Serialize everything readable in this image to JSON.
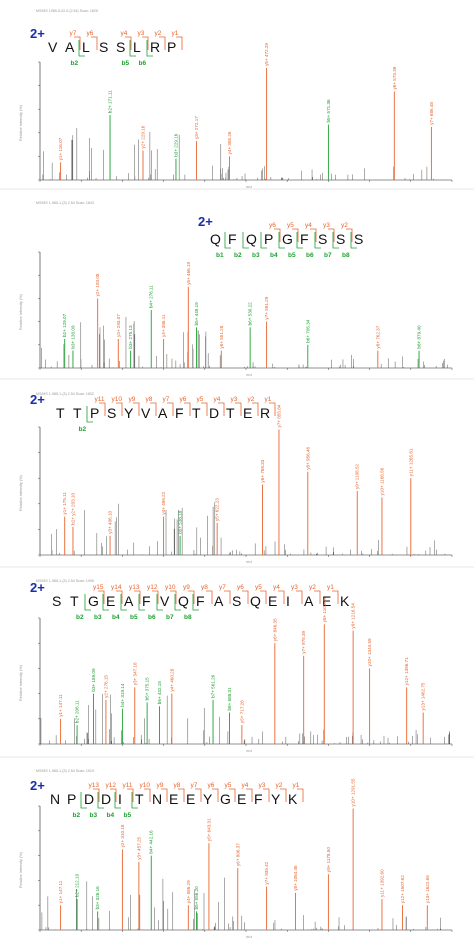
{
  "colors": {
    "y_ion": "#e8652f",
    "b_ion": "#1fa032",
    "charge": "#1a2ea8",
    "peak": "#444444",
    "axis": "#222222",
    "faint": "#999999"
  },
  "chart_data": [
    {
      "type": "bar",
      "charge": "2+",
      "sequence": "VALSSLRP",
      "y_ions": [
        {
          "label": "y7",
          "index": 1
        },
        {
          "label": "y6",
          "index": 2
        },
        {
          "label": "y4",
          "index": 4
        },
        {
          "label": "y3",
          "index": 5
        },
        {
          "label": "y2",
          "index": 6
        },
        {
          "label": "y1",
          "index": 7
        }
      ],
      "b_ions": [
        {
          "label": "b2",
          "index": 1
        },
        {
          "label": "b5",
          "index": 4
        },
        {
          "label": "b6",
          "index": 5
        }
      ],
      "header": "MS/MS 1985-5-02-6 (2.54) Scan: 1825",
      "ylabel": "Relative Intensity (%)",
      "xlabel": "m/z",
      "peaks": [
        {
          "x": 0.05,
          "h": 0.15,
          "lbl": "y1+ 116.07",
          "c": "y"
        },
        {
          "x": 0.17,
          "h": 0.55,
          "lbl": "b2+ 171.11",
          "c": "b"
        },
        {
          "x": 0.25,
          "h": 0.25,
          "lbl": "y2+ 229.16",
          "c": "y"
        },
        {
          "x": 0.33,
          "h": 0.18,
          "lbl": "b3+ 229.16",
          "c": "b"
        },
        {
          "x": 0.38,
          "h": 0.33,
          "lbl": "y3+ 272.17",
          "c": "y"
        },
        {
          "x": 0.46,
          "h": 0.2,
          "lbl": "y4+ 385.26",
          "c": "y"
        },
        {
          "x": 0.55,
          "h": 0.95,
          "lbl": "y5+ 472.29",
          "c": "y"
        },
        {
          "x": 0.7,
          "h": 0.47,
          "lbl": "b5+ 571.36",
          "c": "b"
        },
        {
          "x": 0.86,
          "h": 0.75,
          "lbl": "y6+ 573.39",
          "c": "y"
        },
        {
          "x": 0.95,
          "h": 0.45,
          "lbl": "y7+ 686.48",
          "c": "y"
        }
      ]
    },
    {
      "type": "bar",
      "charge": "2+",
      "sequence": "QFQPGFSSS",
      "y_ions": [
        {
          "label": "y6",
          "index": 3
        },
        {
          "label": "y5",
          "index": 4
        },
        {
          "label": "y4",
          "index": 5
        },
        {
          "label": "y3",
          "index": 6
        },
        {
          "label": "y2",
          "index": 7
        }
      ],
      "b_ions": [
        {
          "label": "b1",
          "index": 0
        },
        {
          "label": "b2",
          "index": 1
        },
        {
          "label": "b3",
          "index": 2
        },
        {
          "label": "b4",
          "index": 3
        },
        {
          "label": "b5",
          "index": 4
        },
        {
          "label": "b6",
          "index": 5
        },
        {
          "label": "b7",
          "index": 6
        },
        {
          "label": "b8",
          "index": 7
        }
      ],
      "header": "MS/MS 1-985-1-(3) 2.54 Scan: 1843",
      "ylabel": "Relative Intensity (%)",
      "xlabel": "m/z",
      "peaks": [
        {
          "x": 0.06,
          "h": 0.25,
          "lbl": "b2+ 129.07",
          "c": "b"
        },
        {
          "x": 0.08,
          "h": 0.15,
          "lbl": "b3+ 130.09",
          "c": "b"
        },
        {
          "x": 0.14,
          "h": 0.6,
          "lbl": "y2+ 193.08",
          "c": "y"
        },
        {
          "x": 0.19,
          "h": 0.25,
          "lbl": "y3+ 293.07",
          "c": "y"
        },
        {
          "x": 0.22,
          "h": 0.15,
          "lbl": "b3+ 275.13",
          "c": "b"
        },
        {
          "x": 0.27,
          "h": 0.5,
          "lbl": "b4+ 276.11",
          "c": "b"
        },
        {
          "x": 0.3,
          "h": 0.25,
          "lbl": "y4+ 386.11",
          "c": "y"
        },
        {
          "x": 0.36,
          "h": 0.7,
          "lbl": "y5+ 466.19",
          "c": "y"
        },
        {
          "x": 0.38,
          "h": 0.35,
          "lbl": "b5+ 449.19",
          "c": "b"
        },
        {
          "x": 0.44,
          "h": 0.15,
          "lbl": "y6+ 551.28",
          "c": "y"
        },
        {
          "x": 0.51,
          "h": 0.35,
          "lbl": "b6+ 530.22",
          "c": "b"
        },
        {
          "x": 0.55,
          "h": 0.4,
          "lbl": "y7+ 591.29",
          "c": "y"
        },
        {
          "x": 0.65,
          "h": 0.2,
          "lbl": "b6+ 705.34",
          "c": "b"
        },
        {
          "x": 0.82,
          "h": 0.15,
          "lbl": "y8+ 762.37",
          "c": "y"
        },
        {
          "x": 0.92,
          "h": 0.15,
          "lbl": "b8+ 879.40",
          "c": "b"
        }
      ]
    },
    {
      "type": "bar",
      "charge": "2+",
      "sequence": "TTPSYVAFTDTER",
      "y_ions": [
        {
          "label": "y11",
          "index": 2
        },
        {
          "label": "y10",
          "index": 3
        },
        {
          "label": "y9",
          "index": 4
        },
        {
          "label": "y8",
          "index": 5
        },
        {
          "label": "y7",
          "index": 6
        },
        {
          "label": "y6",
          "index": 7
        },
        {
          "label": "y5",
          "index": 8
        },
        {
          "label": "y4",
          "index": 9
        },
        {
          "label": "y3",
          "index": 10
        },
        {
          "label": "y2",
          "index": 11
        },
        {
          "label": "y1",
          "index": 12
        }
      ],
      "b_ions": [
        {
          "label": "b2",
          "index": 1
        }
      ],
      "header": "MS/MS 1-985-1-(3) 2.54 Scan: 1832",
      "ylabel": "Relative Intensity (%)",
      "xlabel": "m/z",
      "peaks": [
        {
          "x": 0.06,
          "h": 0.3,
          "lbl": "y1+ 175.11",
          "c": "y"
        },
        {
          "x": 0.08,
          "h": 0.22,
          "lbl": "b2+ y2+ 203.10",
          "c": "y"
        },
        {
          "x": 0.17,
          "h": 0.15,
          "lbl": "y3+ 406.10",
          "c": "y"
        },
        {
          "x": 0.3,
          "h": 0.3,
          "lbl": "y4+ 495.22",
          "c": "y"
        },
        {
          "x": 0.34,
          "h": 0.15,
          "lbl": "b5+ 538.18",
          "c": "b"
        },
        {
          "x": 0.43,
          "h": 0.25,
          "lbl": "y5+ 622.23",
          "c": "y"
        },
        {
          "x": 0.54,
          "h": 0.55,
          "lbl": "y6+ 768.33",
          "c": "y"
        },
        {
          "x": 0.58,
          "h": 0.98,
          "lbl": "y7+ 855.84",
          "c": "y"
        },
        {
          "x": 0.65,
          "h": 0.65,
          "lbl": "y8+ 956.46",
          "c": "y"
        },
        {
          "x": 0.77,
          "h": 0.5,
          "lbl": "y9+ 1108.52",
          "c": "y"
        },
        {
          "x": 0.83,
          "h": 0.45,
          "lbl": "y10+ 1168.56",
          "c": "y"
        },
        {
          "x": 0.9,
          "h": 0.6,
          "lbl": "y11+ 1265.61",
          "c": "y"
        }
      ]
    },
    {
      "type": "bar",
      "charge": "2+",
      "sequence": "STGEAFVQFASQEIAEK",
      "y_ions": [
        {
          "label": "y15",
          "index": 2
        },
        {
          "label": "y14",
          "index": 3
        },
        {
          "label": "y13",
          "index": 4
        },
        {
          "label": "y12",
          "index": 5
        },
        {
          "label": "y10",
          "index": 6
        },
        {
          "label": "y9",
          "index": 7
        },
        {
          "label": "y8",
          "index": 8
        },
        {
          "label": "y7",
          "index": 9
        },
        {
          "label": "y6",
          "index": 10
        },
        {
          "label": "y5",
          "index": 11
        },
        {
          "label": "y4",
          "index": 12
        },
        {
          "label": "y3",
          "index": 13
        },
        {
          "label": "y2",
          "index": 14
        },
        {
          "label": "y1",
          "index": 15
        }
      ],
      "b_ions": [
        {
          "label": "b2",
          "index": 1
        },
        {
          "label": "b3",
          "index": 2
        },
        {
          "label": "b4",
          "index": 3
        },
        {
          "label": "b5",
          "index": 4
        },
        {
          "label": "b6",
          "index": 5
        },
        {
          "label": "b7",
          "index": 6
        },
        {
          "label": "b8",
          "index": 7
        }
      ],
      "header": "MS/MS 1-985-1-(3) 2.54 Scan: 1906",
      "ylabel": "Relative Intensity (%)",
      "xlabel": "m/z",
      "peaks": [
        {
          "x": 0.05,
          "h": 0.2,
          "lbl": "y1+ 147.11",
          "c": "y"
        },
        {
          "x": 0.09,
          "h": 0.15,
          "lbl": "b2+ 206.11",
          "c": "b"
        },
        {
          "x": 0.13,
          "h": 0.4,
          "lbl": "b3+ 189.09",
          "c": "b"
        },
        {
          "x": 0.16,
          "h": 0.35,
          "lbl": "y2+ 276.15",
          "c": "y"
        },
        {
          "x": 0.2,
          "h": 0.28,
          "lbl": "b4+ 319.14",
          "c": "b"
        },
        {
          "x": 0.23,
          "h": 0.45,
          "lbl": "y3+ 347.18",
          "c": "y"
        },
        {
          "x": 0.26,
          "h": 0.33,
          "lbl": "b5+ 375.15",
          "c": "b"
        },
        {
          "x": 0.29,
          "h": 0.3,
          "lbl": "b6+ 432.15",
          "c": "b"
        },
        {
          "x": 0.32,
          "h": 0.4,
          "lbl": "y4+ 460.28",
          "c": "y"
        },
        {
          "x": 0.42,
          "h": 0.35,
          "lbl": "b7+ 561.26",
          "c": "b"
        },
        {
          "x": 0.46,
          "h": 0.25,
          "lbl": "b8+ 688.31",
          "c": "b"
        },
        {
          "x": 0.49,
          "h": 0.15,
          "lbl": "y5+ 717.26",
          "c": "y"
        },
        {
          "x": 0.57,
          "h": 0.8,
          "lbl": "y6+ 846.35",
          "c": "y"
        },
        {
          "x": 0.64,
          "h": 0.7,
          "lbl": "y7+ 975.39",
          "c": "y"
        },
        {
          "x": 0.69,
          "h": 0.95,
          "lbl": "y8+ 1103.45",
          "c": "y"
        },
        {
          "x": 0.76,
          "h": 0.9,
          "lbl": "y9+ 1216.54",
          "c": "y"
        },
        {
          "x": 0.8,
          "h": 0.6,
          "lbl": "y10+ 1344.59",
          "c": "y"
        },
        {
          "x": 0.89,
          "h": 0.45,
          "lbl": "y12+ 1396.71",
          "c": "y"
        },
        {
          "x": 0.93,
          "h": 0.25,
          "lbl": "y13+ 1462.75",
          "c": "y"
        }
      ]
    },
    {
      "type": "bar",
      "charge": "2+",
      "sequence": "NPDDITNEEYGEFYK",
      "y_ions": [
        {
          "label": "y13",
          "index": 2
        },
        {
          "label": "y12",
          "index": 3
        },
        {
          "label": "y11",
          "index": 4
        },
        {
          "label": "y10",
          "index": 5
        },
        {
          "label": "y9",
          "index": 6
        },
        {
          "label": "y8",
          "index": 7
        },
        {
          "label": "y7",
          "index": 8
        },
        {
          "label": "y6",
          "index": 9
        },
        {
          "label": "y5",
          "index": 10
        },
        {
          "label": "y4",
          "index": 11
        },
        {
          "label": "y3",
          "index": 12
        },
        {
          "label": "y2",
          "index": 13
        },
        {
          "label": "y1",
          "index": 14
        }
      ],
      "b_ions": [
        {
          "label": "b2",
          "index": 1
        },
        {
          "label": "b3",
          "index": 2
        },
        {
          "label": "b4",
          "index": 3
        },
        {
          "label": "b5",
          "index": 4
        }
      ],
      "header": "MS/MS 1-985-1-(3) 2.54 Scan: 1919",
      "ylabel": "Relative Intensity (%)",
      "xlabel": "m/z",
      "peaks": [
        {
          "x": 0.05,
          "h": 0.2,
          "lbl": "y1+ 147.11",
          "c": "y"
        },
        {
          "x": 0.09,
          "h": 0.25,
          "lbl": "b2+ 212.10",
          "c": "b"
        },
        {
          "x": 0.14,
          "h": 0.15,
          "lbl": "b3+ 326.16",
          "c": "b"
        },
        {
          "x": 0.2,
          "h": 0.65,
          "lbl": "y2+ 310.18",
          "c": "y"
        },
        {
          "x": 0.24,
          "h": 0.55,
          "lbl": "y3+ 457.25",
          "c": "y"
        },
        {
          "x": 0.27,
          "h": 0.6,
          "lbl": "b4+ 442.16",
          "c": "b"
        },
        {
          "x": 0.36,
          "h": 0.2,
          "lbl": "y4+ 586.29",
          "c": "y"
        },
        {
          "x": 0.38,
          "h": 0.15,
          "lbl": "b5+ 556.20",
          "c": "b"
        },
        {
          "x": 0.41,
          "h": 0.7,
          "lbl": "y5+ 643.31",
          "c": "y"
        },
        {
          "x": 0.48,
          "h": 0.5,
          "lbl": "y6+ 806.37",
          "c": "y"
        },
        {
          "x": 0.55,
          "h": 0.35,
          "lbl": "y7+ 935.42",
          "c": "y"
        },
        {
          "x": 0.62,
          "h": 0.3,
          "lbl": "y8+ 1064.46",
          "c": "y"
        },
        {
          "x": 0.7,
          "h": 0.45,
          "lbl": "y9+ 1178.50",
          "c": "y"
        },
        {
          "x": 0.76,
          "h": 0.98,
          "lbl": "y10+ 1291.55",
          "c": "y"
        },
        {
          "x": 0.83,
          "h": 0.25,
          "lbl": "y11+ 1392.60",
          "c": "y"
        },
        {
          "x": 0.88,
          "h": 0.2,
          "lbl": "y12+ 1507.62",
          "c": "y"
        },
        {
          "x": 0.94,
          "h": 0.2,
          "lbl": "y13+ 1622.65",
          "c": "y"
        }
      ]
    }
  ]
}
